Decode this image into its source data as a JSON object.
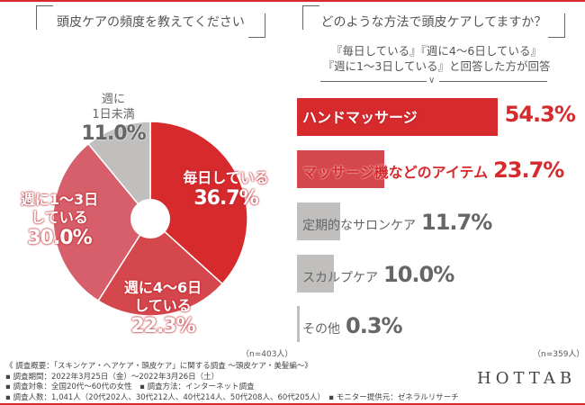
{
  "left": {
    "question": "頭皮ケアの頻度を教えてください",
    "n_label": "（n=403人）"
  },
  "right": {
    "question": "どのような方法で頭皮ケアしてますか？",
    "subtitle_line1": "『毎日している』『週に4～6日している』",
    "subtitle_line2": "『週に1～3日している』と回答した方が回答",
    "n_label": "（n=359人）"
  },
  "chart_data": [
    {
      "type": "pie",
      "title": "頭皮ケアの頻度を教えてください",
      "donut": true,
      "slices": [
        {
          "label_line1": "毎日している",
          "label_line2": "",
          "value": 36.7,
          "display": "36.7%",
          "color": "#d62a2d"
        },
        {
          "label_line1": "週に4～6日",
          "label_line2": "している",
          "value": 22.3,
          "display": "22.3%",
          "color": "#d4474c"
        },
        {
          "label_line1": "週に1～3日",
          "label_line2": "している",
          "value": 30.0,
          "display": "30.0%",
          "color": "#d65f6b"
        },
        {
          "label_line1": "週に",
          "label_line2": "1日未満",
          "value": 11.0,
          "display": "11.0%",
          "color": "#c0bfbd"
        }
      ]
    },
    {
      "type": "bar",
      "orientation": "horizontal",
      "title": "どのような方法で頭皮ケアしてますか？",
      "categories": [
        "ハンドマッサージ",
        "マッサージ機などのアイテム",
        "定期的なサロンケア",
        "スカルプケア",
        "その他"
      ],
      "values": [
        54.3,
        23.7,
        11.7,
        10.0,
        0.3
      ],
      "display": [
        "54.3%",
        "23.7%",
        "11.7%",
        "10.0%",
        "0.3%"
      ],
      "colors": [
        "#d62a2d",
        "#d4474c",
        "#c0bfbd",
        "#c0bfbd",
        "#c0bfbd"
      ],
      "label_colors": [
        "#d62a2d",
        "#d62a2d",
        "#666666",
        "#666666",
        "#666666"
      ]
    }
  ],
  "footer": {
    "notes": [
      "《 調査概要：「スキンケア・ヘアケア・頭皮ケア」に関する調査 ～頭皮ケア・美髪編～》",
      "▪ 調査期間：2022年3月25日（金）～2022年3月26日（土）",
      "▪ 調査対象：全国20代～60代の女性　▪ 調査方法：インターネット調査",
      "▪ 調査人数：1,041人（20代202人、30代212人、40代214人、50代208人、60代205人）　▪ モニター提供元：ゼネラルリサーチ"
    ],
    "logo": "HOTTAB"
  }
}
